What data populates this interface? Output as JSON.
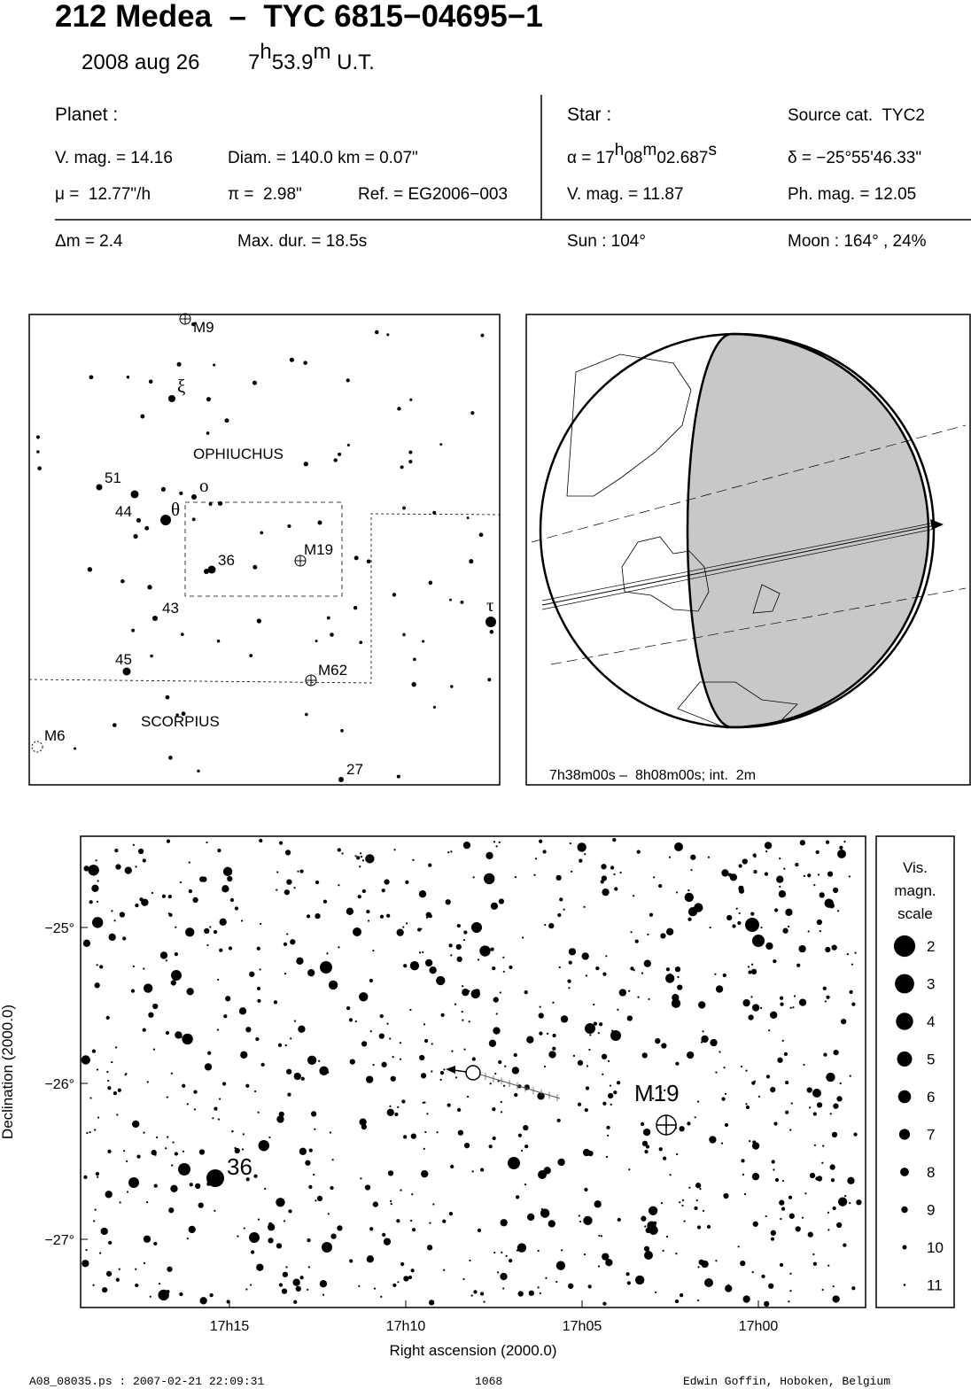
{
  "header": {
    "title": "212 Medea  –  TYC 6815−04695−1",
    "date": "2008 aug 26",
    "time": [
      "7",
      "h",
      "53.9",
      "m",
      " U.T."
    ]
  },
  "planet": {
    "label": "Planet :",
    "vmag": "V. mag. = 14.16",
    "diam": "Diam. = 140.0 km = 0.07\"",
    "mu": "μ =  12.77\"/h",
    "pi": "π =  2.98\"",
    "ref": "Ref. = EG2006−003"
  },
  "star": {
    "label": "Star :",
    "source": "Source cat.  TYC2",
    "alpha": [
      "α = 17",
      "h",
      "08",
      "m",
      "02.687",
      "s"
    ],
    "delta": "δ = −25°55'46.33\"",
    "vmag": "V. mag. = 11.87",
    "phmag": "Ph. mag. = 12.05"
  },
  "event": {
    "dm": "Δm = 2.4",
    "maxdur": "Max. dur. = 18.5s",
    "sun": "Sun : 104°",
    "moon": "Moon : 164° , 24%"
  },
  "finder": {
    "labels": [
      "M9",
      "ξ",
      "OPHIUCHUS",
      "51",
      "44",
      "θ",
      "o",
      "M19",
      "36",
      "43",
      "τ",
      "45",
      "M62",
      "SCORPIUS",
      "M6",
      "27"
    ]
  },
  "globe": {
    "caption": "7h38m00s –  8h08m00s; int.  2m"
  },
  "detail": {
    "xticks": [
      "17h15",
      "17h10",
      "17h05",
      "17h00"
    ],
    "yticks": [
      "−25°",
      "−26°",
      "−27°"
    ],
    "xlabel": "Right ascension (2000.0)",
    "ylabel": "Declination (2000.0)",
    "labels": [
      "M19",
      "36"
    ],
    "legend": {
      "title": [
        "Vis.",
        "magn.",
        "scale"
      ],
      "mags": [
        2,
        3,
        4,
        5,
        6,
        7,
        8,
        9,
        10,
        11
      ]
    }
  },
  "footer": {
    "file": "A08_08035.ps : 2007-02-21 22:09:31",
    "number": "1068",
    "author": "Edwin Goffin, Hoboken, Belgium"
  }
}
